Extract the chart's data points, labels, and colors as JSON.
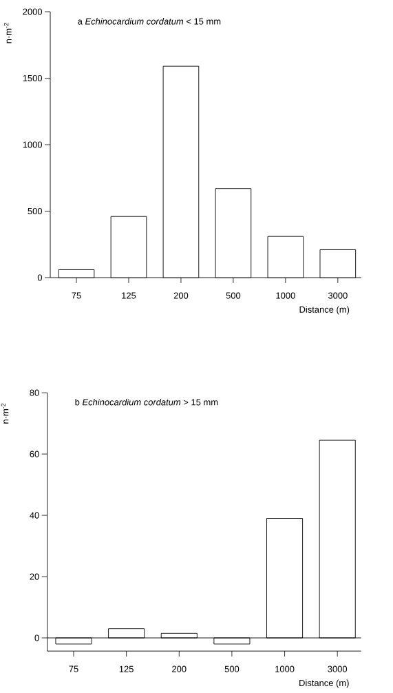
{
  "chart_data": [
    {
      "type": "bar",
      "title": "a *Echinocardium cordatum* < 15 mm",
      "xlabel": "Distance (m)",
      "ylabel": "n·m$^{-2}$",
      "categories": [
        "75",
        "125",
        "200",
        "500",
        "1000",
        "3000"
      ],
      "series": [
        {
          "color": "#000000",
          "values": [
            60,
            460,
            1590,
            670,
            310,
            210
          ]
        }
      ],
      "ylim": [
        0,
        2000
      ],
      "yticks": [
        0,
        500,
        1000,
        1500,
        2000
      ]
    },
    {
      "type": "bar",
      "title": "b *Echinocardium cordatum* > 15 mm",
      "xlabel": "Distance (m)",
      "ylabel": "n·m$^{-2}$",
      "categories": [
        "75",
        "125",
        "200",
        "500",
        "1000",
        "3000"
      ],
      "series": [
        {
          "color": "#000000",
          "values": [
            -2,
            3,
            1.5,
            -2,
            39,
            64.5
          ]
        }
      ],
      "ylim": [
        -4.3,
        80
      ],
      "yticks": [
        0,
        20,
        40,
        60,
        80
      ],
      "ref_lines": [
        {
          "axis": "y",
          "value": 0
        }
      ]
    }
  ]
}
